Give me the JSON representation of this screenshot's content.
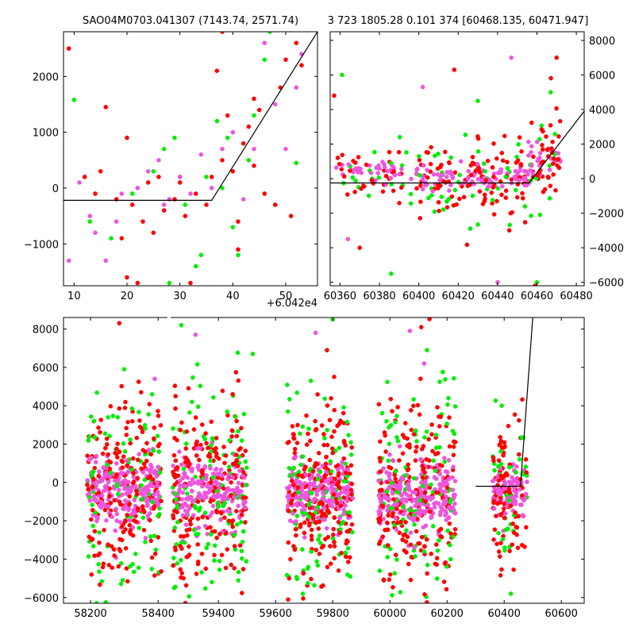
{
  "chart_data": [
    {
      "type": "scatter",
      "panel": "top-left",
      "title": "SAO04M0703.041307 (7143.74, 2571.74)",
      "xlim": [
        8,
        56
      ],
      "ylim": [
        -1750,
        2800
      ],
      "x_ticks": [
        10,
        20,
        30,
        40,
        50
      ],
      "x_tick_labels": [
        "10",
        "20",
        "30",
        "40",
        "50"
      ],
      "x_offset_label": "+6.042e4",
      "y_ticks": [
        -1000,
        0,
        1000,
        2000
      ],
      "y_tick_labels": [
        "−1000",
        "0",
        "1000",
        "2000"
      ],
      "series_colors": [
        "#ff0000",
        "#00ee00",
        "#ee55dd"
      ],
      "fit_line": {
        "x": [
          8,
          36,
          56
        ],
        "y": [
          -220,
          -220,
          2800
        ]
      },
      "series": [
        {
          "color": "#ff0000",
          "points": [
            [
              9,
              2500
            ],
            [
              12,
              200
            ],
            [
              14,
              -100
            ],
            [
              15,
              300
            ],
            [
              16,
              1450
            ],
            [
              18,
              -200
            ],
            [
              19,
              -900
            ],
            [
              20,
              900
            ],
            [
              21,
              -300
            ],
            [
              23,
              -600
            ],
            [
              24,
              100
            ],
            [
              25,
              -800
            ],
            [
              26,
              200
            ],
            [
              27,
              -400
            ],
            [
              29,
              -200
            ],
            [
              30,
              100
            ],
            [
              31,
              -500
            ],
            [
              33,
              -100
            ],
            [
              35,
              -300
            ],
            [
              37,
              2100
            ],
            [
              38,
              500
            ],
            [
              39,
              1300
            ],
            [
              40,
              300
            ],
            [
              41,
              -1100
            ],
            [
              42,
              800
            ],
            [
              43,
              1100
            ],
            [
              44,
              1600
            ],
            [
              45,
              1400
            ],
            [
              46,
              -100
            ],
            [
              48,
              -300
            ],
            [
              49,
              1800
            ],
            [
              50,
              2300
            ],
            [
              51,
              -500
            ],
            [
              52,
              2600
            ],
            [
              53,
              2200
            ],
            [
              20,
              -1600
            ],
            [
              22,
              -1700
            ],
            [
              32,
              -1700
            ],
            [
              38,
              2800
            ],
            [
              36,
              200
            ],
            [
              41,
              -600
            ],
            [
              44,
              400
            ]
          ]
        },
        {
          "color": "#00ee00",
          "points": [
            [
              10,
              1580
            ],
            [
              13,
              -600
            ],
            [
              17,
              -900
            ],
            [
              21,
              -100
            ],
            [
              25,
              300
            ],
            [
              27,
              700
            ],
            [
              29,
              900
            ],
            [
              31,
              -300
            ],
            [
              33,
              -1400
            ],
            [
              35,
              200
            ],
            [
              37,
              1200
            ],
            [
              38,
              0
            ],
            [
              39,
              900
            ],
            [
              40,
              -700
            ],
            [
              41,
              -1200
            ],
            [
              43,
              500
            ],
            [
              44,
              1300
            ],
            [
              46,
              2300
            ],
            [
              47,
              2800
            ],
            [
              52,
              450
            ],
            [
              28,
              -1700
            ],
            [
              34,
              -1200
            ],
            [
              30,
              200
            ]
          ]
        },
        {
          "color": "#ee55dd",
          "points": [
            [
              9,
              -1300
            ],
            [
              11,
              100
            ],
            [
              13,
              -500
            ],
            [
              16,
              -1300
            ],
            [
              19,
              -100
            ],
            [
              22,
              0
            ],
            [
              24,
              300
            ],
            [
              26,
              500
            ],
            [
              28,
              -200
            ],
            [
              30,
              200
            ],
            [
              32,
              -100
            ],
            [
              34,
              600
            ],
            [
              36,
              0
            ],
            [
              38,
              700
            ],
            [
              40,
              1000
            ],
            [
              42,
              -200
            ],
            [
              44,
              700
            ],
            [
              46,
              2600
            ],
            [
              48,
              1500
            ],
            [
              50,
              700
            ],
            [
              52,
              1800
            ],
            [
              53,
              2400
            ],
            [
              14,
              -800
            ],
            [
              18,
              -600
            ],
            [
              27,
              -300
            ]
          ]
        }
      ]
    },
    {
      "type": "scatter",
      "panel": "top-right",
      "title": "3 723 1805.28 0.101 374 [60468.135, 60471.947]",
      "xlim": [
        60355,
        60484
      ],
      "ylim": [
        -6200,
        8500
      ],
      "x_ticks": [
        60360,
        60380,
        60400,
        60420,
        60440,
        60460,
        60480
      ],
      "x_tick_labels": [
        "60360",
        "60380",
        "60400",
        "60420",
        "60440",
        "60460",
        "60480"
      ],
      "y_ticks": [
        -6000,
        -4000,
        -2000,
        0,
        2000,
        4000,
        6000,
        8000
      ],
      "y_tick_labels": [
        "−6000",
        "−4000",
        "−2000",
        "0",
        "2000",
        "4000",
        "6000",
        "8000"
      ],
      "y_axis_side": "right",
      "fit_line": {
        "x": [
          60355,
          60456,
          60484
        ],
        "y": [
          -250,
          -250,
          3900
        ]
      },
      "clusters": [
        {
          "x_range": [
            60357,
            60400
          ],
          "y_center": 200,
          "y_spread": 800,
          "count": 90
        },
        {
          "x_range": [
            60400,
            60456
          ],
          "y_center": -100,
          "y_spread": 1100,
          "count": 220
        },
        {
          "x_range": [
            60455,
            60472
          ],
          "y_center": 900,
          "y_spread": 1500,
          "count": 80
        }
      ],
      "outliers": [
        [
          60357,
          4800
        ],
        [
          60361,
          6000
        ],
        [
          60364,
          -3500
        ],
        [
          60370,
          -4000
        ],
        [
          60386,
          -5500
        ],
        [
          60402,
          5300
        ],
        [
          60418,
          6300
        ],
        [
          60430,
          4500
        ],
        [
          60447,
          7000
        ],
        [
          60470,
          7000
        ],
        [
          60467,
          5000
        ],
        [
          60440,
          -6000
        ],
        [
          60459,
          -6200
        ],
        [
          60460,
          -6000
        ]
      ]
    },
    {
      "type": "scatter",
      "panel": "bottom",
      "xlim": [
        58120,
        60680
      ],
      "ylim": [
        -6300,
        8600
      ],
      "x_breaks": [
        [
          58120,
          58430
        ],
        [
          59230,
          60680
        ]
      ],
      "x_ticks": [
        58200,
        58400,
        59400,
        59600,
        59800,
        60000,
        60200,
        60400,
        60600
      ],
      "x_tick_labels": [
        "58200",
        "58400",
        "59400",
        "59600",
        "59800",
        "60000",
        "60200",
        "60400",
        "60600"
      ],
      "y_ticks": [
        -6000,
        -4000,
        -2000,
        0,
        2000,
        4000,
        6000,
        8000
      ],
      "y_tick_labels": [
        "−6000",
        "−4000",
        "−2000",
        "0",
        "2000",
        "4000",
        "6000",
        "8000"
      ],
      "fit_line": {
        "x": [
          60300,
          60457,
          60500
        ],
        "y": [
          -200,
          -200,
          8600
        ]
      },
      "clusters": [
        {
          "x_range": [
            58190,
            58410
          ],
          "y_center": -600,
          "y_spread": 2500,
          "count": 520
        },
        {
          "x_range": [
            59240,
            59500
          ],
          "y_center": -700,
          "y_spread": 2500,
          "count": 520
        },
        {
          "x_range": [
            59640,
            59870
          ],
          "y_center": -700,
          "y_spread": 2500,
          "count": 520
        },
        {
          "x_range": [
            59960,
            60230
          ],
          "y_center": -800,
          "y_spread": 2600,
          "count": 560
        },
        {
          "x_range": [
            60360,
            60480
          ],
          "y_center": -600,
          "y_spread": 2000,
          "count": 220
        }
      ],
      "outliers": [
        [
          58285,
          8300
        ],
        [
          58300,
          5900
        ],
        [
          58390,
          5400
        ],
        [
          59250,
          4500
        ],
        [
          59270,
          8200
        ],
        [
          59320,
          7700
        ],
        [
          59450,
          4600
        ],
        [
          59520,
          6700
        ],
        [
          59740,
          7800
        ],
        [
          59780,
          6900
        ],
        [
          59800,
          8500
        ],
        [
          60070,
          7900
        ],
        [
          60110,
          8100
        ],
        [
          60130,
          6900
        ],
        [
          60120,
          6200
        ]
      ]
    }
  ]
}
